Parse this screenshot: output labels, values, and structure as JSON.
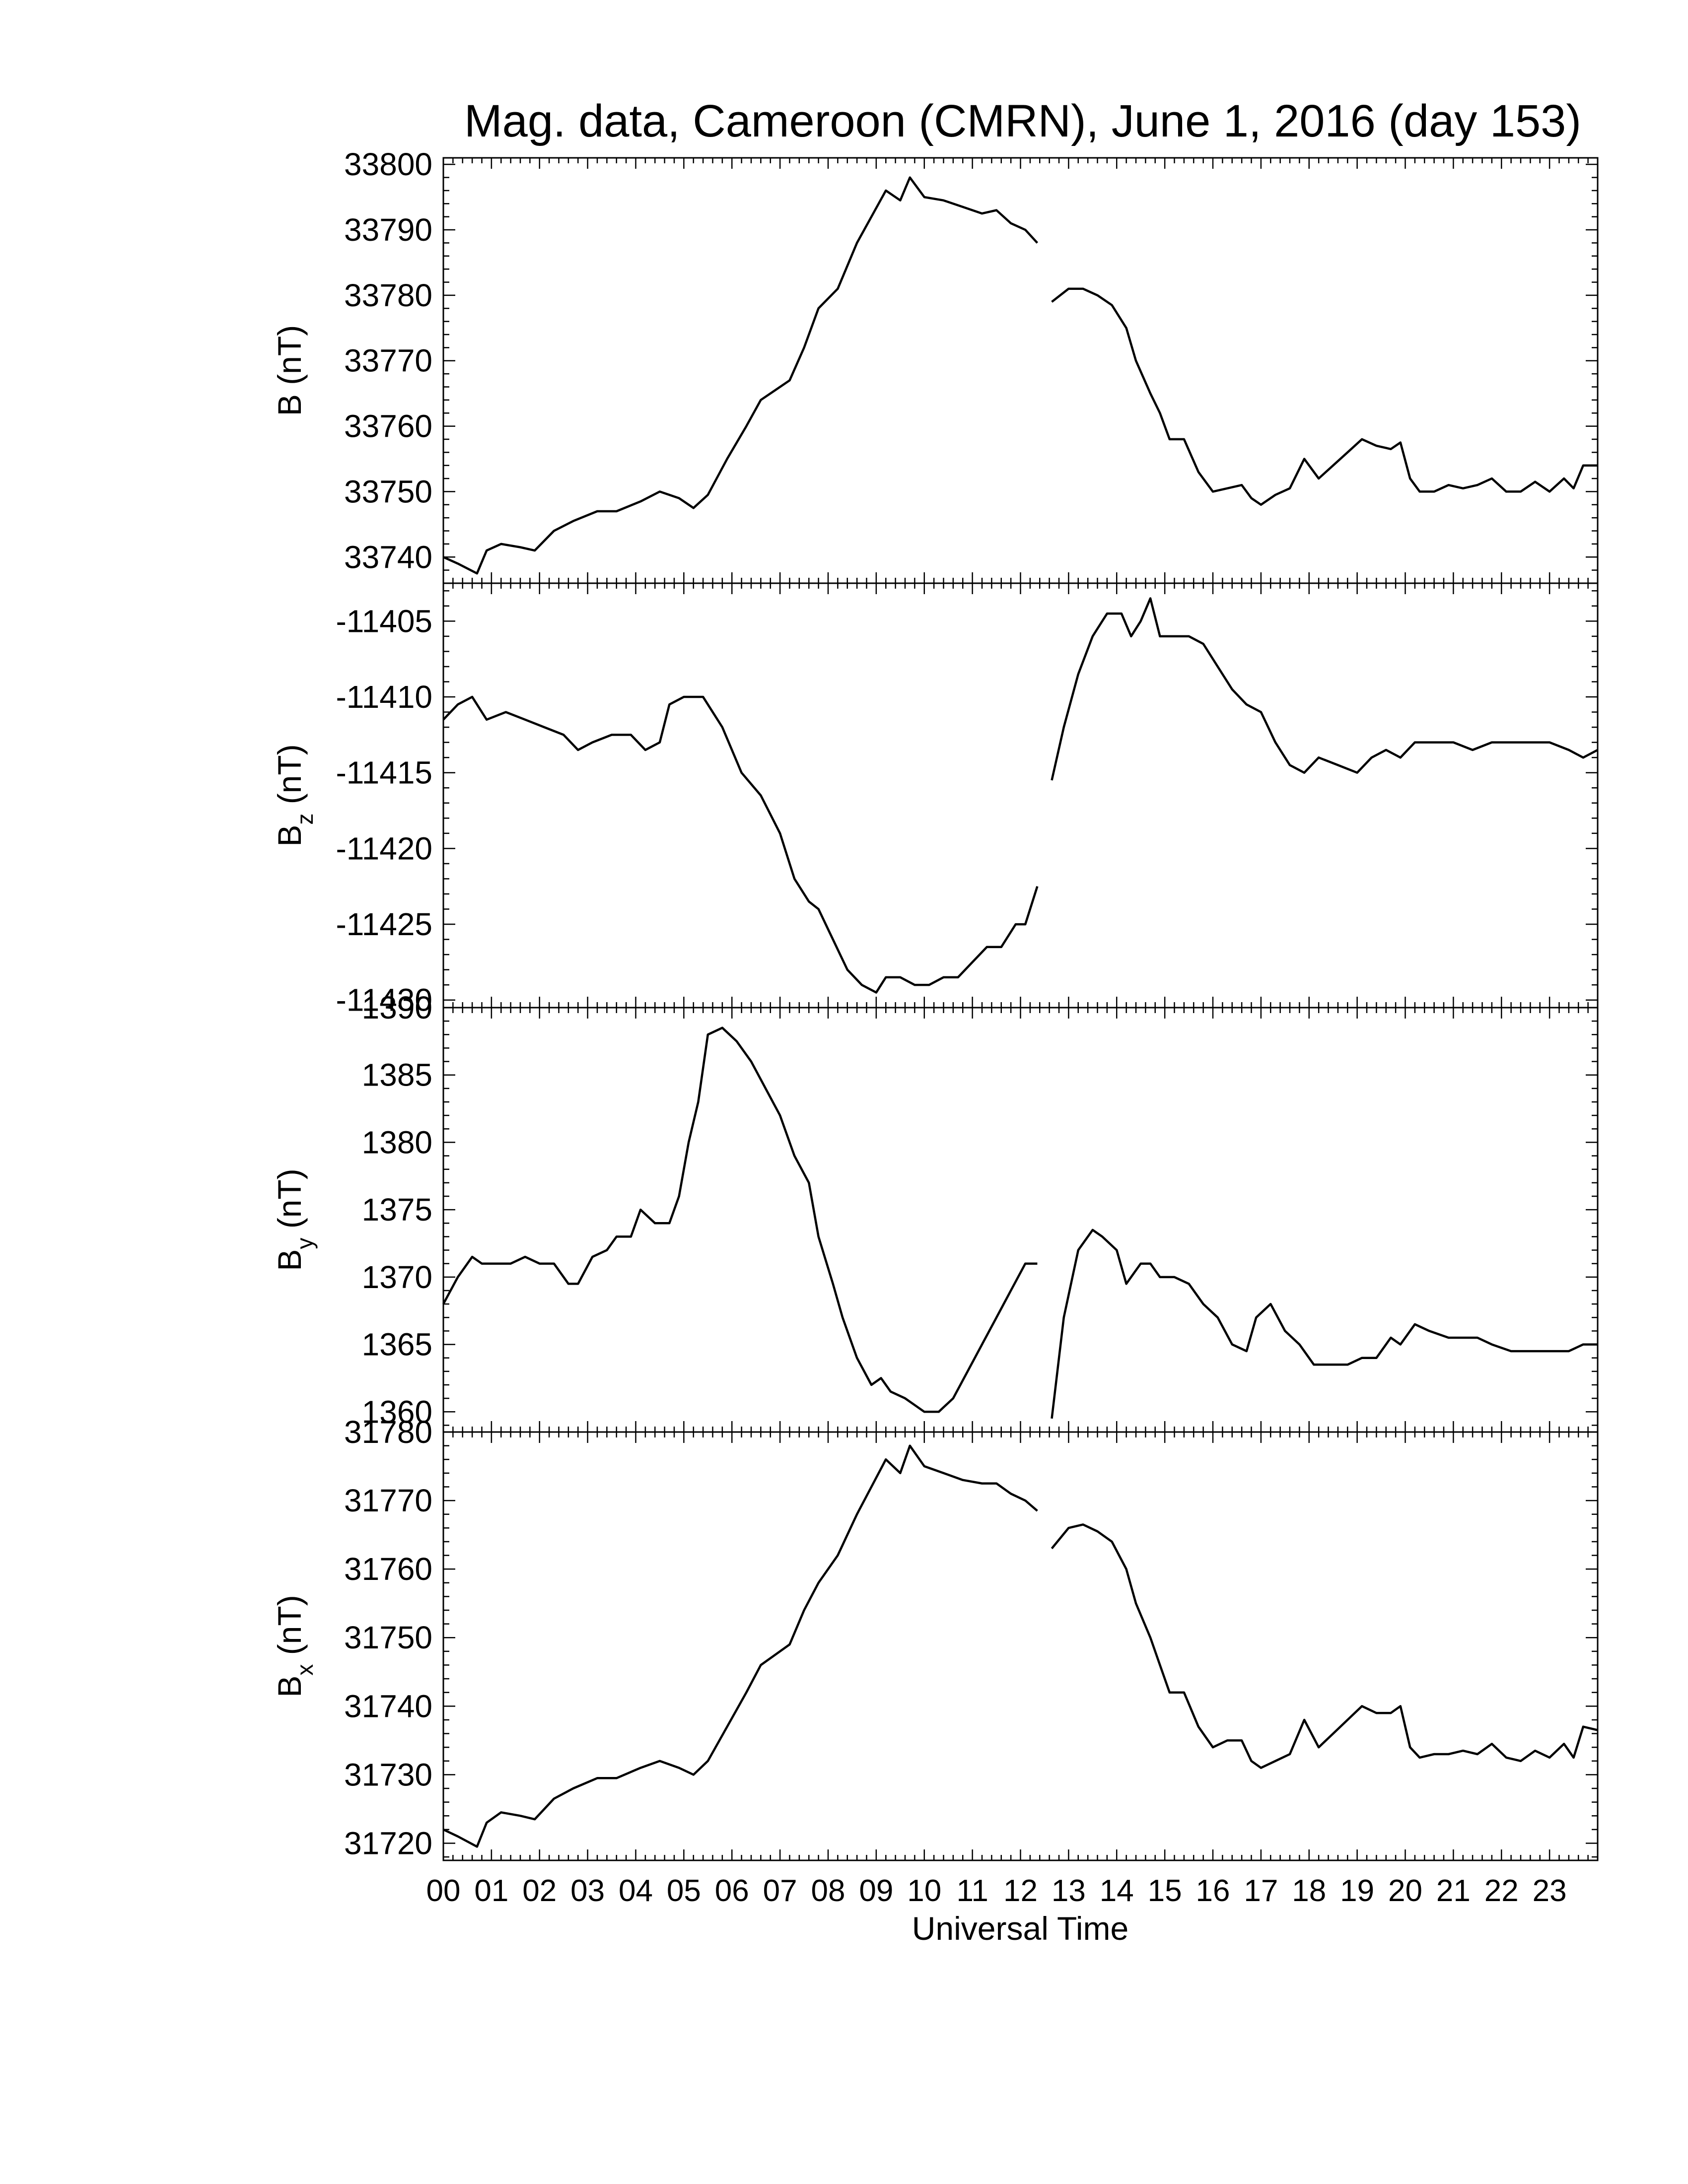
{
  "figure": {
    "title": "Mag. data, Cameroon (CMRN), June 1, 2016 (day 153)",
    "xlabel": "Universal Time",
    "line_color": "#000000"
  },
  "chart_data": [
    {
      "type": "line",
      "ylabel": "B (nT)",
      "ylabel_main": "B",
      "ylabel_sub": "",
      "ylabel_unit": " (nT)",
      "xlim": [
        0,
        24
      ],
      "ylim": [
        33736,
        33801
      ],
      "yticks": [
        33740,
        33750,
        33760,
        33770,
        33780,
        33790,
        33800
      ],
      "gap": [
        12.35,
        12.65
      ],
      "series": [
        {
          "x": [
            0,
            0.3,
            0.7,
            0.9,
            1.2,
            1.6,
            1.9,
            2.3,
            2.7,
            3.2,
            3.6,
            4.1,
            4.5,
            4.9,
            5.2,
            5.5,
            5.9,
            6.3,
            6.6,
            6.9,
            7.2,
            7.5,
            7.8,
            8.2,
            8.6,
            8.9,
            9.2,
            9.5,
            9.7,
            10.0,
            10.4,
            10.8,
            11.2,
            11.5,
            11.8,
            12.1,
            12.35,
            12.65,
            13.0,
            13.3,
            13.6,
            13.9,
            14.2,
            14.4,
            14.7,
            14.9,
            15.1,
            15.4,
            15.7,
            16.0,
            16.3,
            16.6,
            16.8,
            17.0,
            17.3,
            17.6,
            17.9,
            18.2,
            18.5,
            18.8,
            19.1,
            19.4,
            19.7,
            19.9,
            20.1,
            20.3,
            20.6,
            20.9,
            21.2,
            21.5,
            21.8,
            22.1,
            22.4,
            22.7,
            23.0,
            23.3,
            23.5,
            23.7,
            24.0
          ],
          "y": [
            33740,
            33739,
            33737.5,
            33741,
            33742,
            33741.5,
            33741,
            33744,
            33745.5,
            33747,
            33747,
            33748.5,
            33750,
            33749,
            33747.5,
            33749.5,
            33755,
            33760,
            33764,
            33765.5,
            33767,
            33772,
            33778,
            33781,
            33788,
            33792,
            33796,
            33794.5,
            33798,
            33795,
            33794.5,
            33793.5,
            33792.5,
            33793,
            33791,
            33790,
            33788,
            33779,
            33781,
            33781,
            33780,
            33778.5,
            33775,
            33770,
            33765,
            33762,
            33758,
            33758,
            33753,
            33750,
            33750.5,
            33751,
            33749,
            33748,
            33749.5,
            33750.5,
            33755,
            33752,
            33754,
            33756,
            33758,
            33757,
            33756.5,
            33757.5,
            33752,
            33750,
            33750,
            33751,
            33750.5,
            33751,
            33752,
            33750,
            33750,
            33751.5,
            33750,
            33752,
            33750.5,
            33754,
            33754
          ]
        }
      ]
    },
    {
      "type": "line",
      "ylabel": "Bz (nT)",
      "ylabel_main": "B",
      "ylabel_sub": "z",
      "ylabel_unit": " (nT)",
      "xlim": [
        0,
        24
      ],
      "ylim": [
        -11430.5,
        -11402.5
      ],
      "yticks": [
        -11430,
        -11425,
        -11420,
        -11415,
        -11410,
        -11405
      ],
      "gap": [
        12.35,
        12.65
      ],
      "series": [
        {
          "x": [
            0,
            0.3,
            0.6,
            0.9,
            1.3,
            1.7,
            2.1,
            2.5,
            2.8,
            3.1,
            3.5,
            3.9,
            4.2,
            4.5,
            4.7,
            5.0,
            5.4,
            5.8,
            6.2,
            6.6,
            7.0,
            7.3,
            7.6,
            7.8,
            8.1,
            8.4,
            8.7,
            9.0,
            9.2,
            9.5,
            9.8,
            10.1,
            10.4,
            10.7,
            11.0,
            11.3,
            11.6,
            11.9,
            12.1,
            12.35,
            12.65,
            12.9,
            13.2,
            13.5,
            13.8,
            14.1,
            14.3,
            14.5,
            14.7,
            14.9,
            15.2,
            15.5,
            15.8,
            16.1,
            16.4,
            16.7,
            17.0,
            17.3,
            17.6,
            17.9,
            18.2,
            18.6,
            19.0,
            19.3,
            19.6,
            19.9,
            20.2,
            20.6,
            21.0,
            21.4,
            21.8,
            22.2,
            22.6,
            23.0,
            23.4,
            23.7,
            24.0
          ],
          "y": [
            -11411.5,
            -11410.5,
            -11410,
            -11411.5,
            -11411,
            -11411.5,
            -11412,
            -11412.5,
            -11413.5,
            -11413,
            -11412.5,
            -11412.5,
            -11413.5,
            -11413,
            -11410.5,
            -11410,
            -11410,
            -11412,
            -11415,
            -11416.5,
            -11419,
            -11422,
            -11423.5,
            -11424,
            -11426,
            -11428,
            -11429,
            -11429.5,
            -11428.5,
            -11428.5,
            -11429,
            -11429,
            -11428.5,
            -11428.5,
            -11427.5,
            -11426.5,
            -11426.5,
            -11425,
            -11425,
            -11422.5,
            -11415.5,
            -11412,
            -11408.5,
            -11406,
            -11404.5,
            -11404.5,
            -11406,
            -11405,
            -11403.5,
            -11406,
            -11406,
            -11406,
            -11406.5,
            -11408,
            -11409.5,
            -11410.5,
            -11411,
            -11413,
            -11414.5,
            -11415,
            -11414,
            -11414.5,
            -11415,
            -11414,
            -11413.5,
            -11414,
            -11413,
            -11413,
            -11413,
            -11413.5,
            -11413,
            -11413,
            -11413,
            -11413,
            -11413.5,
            -11414,
            -11413.5
          ]
        }
      ]
    },
    {
      "type": "line",
      "ylabel": "By (nT)",
      "ylabel_main": "B",
      "ylabel_sub": "y",
      "ylabel_unit": " (nT)",
      "xlim": [
        0,
        24
      ],
      "ylim": [
        1358.5,
        1390
      ],
      "yticks": [
        1360,
        1365,
        1370,
        1375,
        1380,
        1385,
        1390
      ],
      "gap": [
        12.35,
        12.65
      ],
      "series": [
        {
          "x": [
            0,
            0.3,
            0.6,
            0.8,
            1.1,
            1.4,
            1.7,
            2.0,
            2.3,
            2.6,
            2.8,
            3.1,
            3.4,
            3.6,
            3.9,
            4.1,
            4.4,
            4.7,
            4.9,
            5.1,
            5.3,
            5.5,
            5.8,
            6.1,
            6.4,
            6.7,
            7.0,
            7.3,
            7.6,
            7.8,
            8.1,
            8.3,
            8.6,
            8.9,
            9.1,
            9.3,
            9.6,
            9.8,
            10.0,
            10.3,
            10.6,
            10.9,
            11.2,
            11.5,
            11.8,
            12.1,
            12.35,
            12.65,
            12.9,
            13.2,
            13.5,
            13.7,
            14.0,
            14.2,
            14.5,
            14.7,
            14.9,
            15.2,
            15.5,
            15.8,
            16.1,
            16.4,
            16.7,
            16.9,
            17.2,
            17.5,
            17.8,
            18.1,
            18.5,
            18.8,
            19.1,
            19.4,
            19.7,
            19.9,
            20.2,
            20.5,
            20.9,
            21.2,
            21.5,
            21.8,
            22.2,
            22.6,
            23.0,
            23.4,
            23.7,
            24.0
          ],
          "y": [
            1368,
            1370,
            1371.5,
            1371,
            1371,
            1371,
            1371.5,
            1371,
            1371,
            1369.5,
            1369.5,
            1371.5,
            1372,
            1373,
            1373,
            1375,
            1374,
            1374,
            1376,
            1380,
            1383,
            1388,
            1388.5,
            1387.5,
            1386,
            1384,
            1382,
            1379,
            1377,
            1373,
            1369.5,
            1367,
            1364,
            1362,
            1362.5,
            1361.5,
            1361,
            1360.5,
            1360,
            1360,
            1361,
            1363,
            1365,
            1367,
            1369,
            1371,
            1371,
            1359.5,
            1367,
            1372,
            1373.5,
            1373,
            1372,
            1369.5,
            1371,
            1371,
            1370,
            1370,
            1369.5,
            1368,
            1367,
            1365,
            1364.5,
            1367,
            1368,
            1366,
            1365,
            1363.5,
            1363.5,
            1363.5,
            1364,
            1364,
            1365.5,
            1365,
            1366.5,
            1366,
            1365.5,
            1365.5,
            1365.5,
            1365,
            1364.5,
            1364.5,
            1364.5,
            1364.5,
            1365,
            1365
          ]
        }
      ]
    },
    {
      "type": "line",
      "ylabel": "Bx (nT)",
      "ylabel_main": "B",
      "ylabel_sub": "x",
      "ylabel_unit": " (nT)",
      "xlim": [
        0,
        24
      ],
      "ylim": [
        31717.5,
        31780
      ],
      "yticks": [
        31720,
        31730,
        31740,
        31750,
        31760,
        31770,
        31780
      ],
      "gap": [
        12.35,
        12.65
      ],
      "series": [
        {
          "x": [
            0,
            0.3,
            0.7,
            0.9,
            1.2,
            1.6,
            1.9,
            2.3,
            2.7,
            3.2,
            3.6,
            4.1,
            4.5,
            4.9,
            5.2,
            5.5,
            5.9,
            6.3,
            6.6,
            6.9,
            7.2,
            7.5,
            7.8,
            8.2,
            8.6,
            8.9,
            9.2,
            9.5,
            9.7,
            10.0,
            10.4,
            10.8,
            11.2,
            11.5,
            11.8,
            12.1,
            12.35,
            12.65,
            13.0,
            13.3,
            13.6,
            13.9,
            14.2,
            14.4,
            14.7,
            14.9,
            15.1,
            15.4,
            15.7,
            16.0,
            16.3,
            16.6,
            16.8,
            17.0,
            17.3,
            17.6,
            17.9,
            18.2,
            18.5,
            18.8,
            19.1,
            19.4,
            19.7,
            19.9,
            20.1,
            20.3,
            20.6,
            20.9,
            21.2,
            21.5,
            21.8,
            22.1,
            22.4,
            22.7,
            23.0,
            23.3,
            23.5,
            23.7,
            24.0
          ],
          "y": [
            31722,
            31721,
            31719.5,
            31723,
            31724.5,
            31724,
            31723.5,
            31726.5,
            31728,
            31729.5,
            31729.5,
            31731,
            31732,
            31731,
            31730,
            31732,
            31737,
            31742,
            31746,
            31747.5,
            31749,
            31754,
            31758,
            31762,
            31768,
            31772,
            31776,
            31774,
            31778,
            31775,
            31774,
            31773,
            31772.5,
            31772.5,
            31771,
            31770,
            31768.5,
            31763,
            31766,
            31766.5,
            31765.5,
            31764,
            31760,
            31755,
            31750,
            31746,
            31742,
            31742,
            31737,
            31734,
            31735,
            31735,
            31732,
            31731,
            31732,
            31733,
            31738,
            31734,
            31736,
            31738,
            31740,
            31739,
            31739,
            31740,
            31734,
            31732.5,
            31733,
            31733,
            31733.5,
            31733,
            31734.5,
            31732.5,
            31732,
            31733.5,
            31732.5,
            31734.5,
            31732.5,
            31737,
            31736.5
          ]
        }
      ]
    }
  ]
}
